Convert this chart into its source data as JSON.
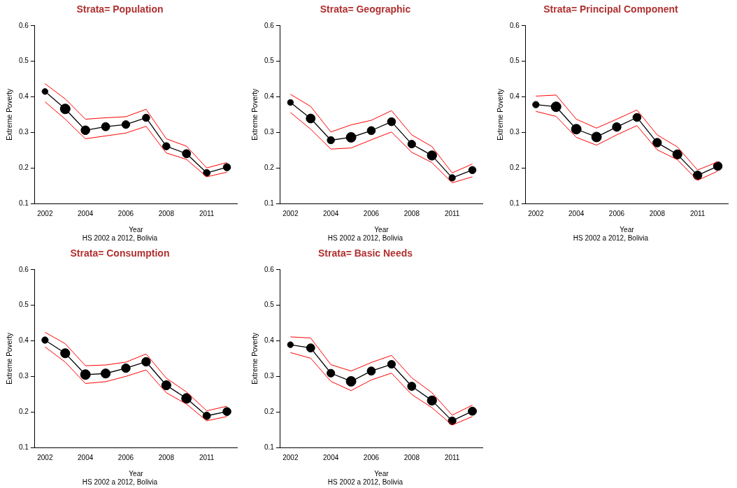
{
  "chart_data": [
    {
      "type": "line",
      "title": "Strata= Population",
      "xlabel": "Year",
      "ylabel": "Extreme Poverty",
      "annotations": [
        "HS 2002 a 2012, Bolivia"
      ],
      "categories": [
        "2002",
        null,
        "2004",
        null,
        "2006",
        null,
        "2008",
        null,
        "2011",
        null
      ],
      "ylim": [
        0.1,
        0.6
      ],
      "yticks": [
        0.1,
        0.2,
        0.3,
        0.4,
        0.5,
        0.6
      ],
      "grid": false,
      "legend": false,
      "series": [
        {
          "color": "#ff0000",
          "values": [
            0.437,
            0.394,
            0.337,
            0.341,
            0.344,
            0.365,
            0.282,
            0.261,
            0.2,
            0.215
          ]
        },
        {
          "color": "#ff0000",
          "values": [
            0.386,
            0.337,
            0.282,
            0.29,
            0.298,
            0.317,
            0.242,
            0.224,
            0.175,
            0.188
          ]
        },
        {
          "color": "#000000",
          "values": [
            0.415,
            0.366,
            0.306,
            0.316,
            0.322,
            0.341,
            0.261,
            0.24,
            0.186,
            0.202
          ]
        },
        {
          "type": "bubble",
          "color": "#000000",
          "values": [
            0.415,
            0.366,
            0.306,
            0.316,
            0.322,
            0.341,
            0.261,
            0.24,
            0.186,
            0.202
          ],
          "sizes": [
            0.36,
            1,
            0.81,
            0.72,
            0.64,
            0.56,
            0.56,
            0.72,
            0.49,
            0.56
          ]
        }
      ]
    },
    {
      "type": "line",
      "title": "Strata= Geographic",
      "xlabel": "Year",
      "ylabel": "Extreme Poverty",
      "annotations": [
        "HS 2002 a 2012, Bolivia"
      ],
      "categories": [
        "2002",
        null,
        "2004",
        null,
        "2006",
        null,
        "2008",
        null,
        "2011",
        null
      ],
      "ylim": [
        0.1,
        0.6
      ],
      "yticks": [
        0.1,
        0.2,
        0.3,
        0.4,
        0.5,
        0.6
      ],
      "grid": false,
      "legend": false,
      "series": [
        {
          "color": "#ff0000",
          "values": [
            0.407,
            0.373,
            0.301,
            0.321,
            0.334,
            0.361,
            0.293,
            0.26,
            0.186,
            0.211
          ]
        },
        {
          "color": "#ff0000",
          "values": [
            0.356,
            0.309,
            0.253,
            0.256,
            0.279,
            0.301,
            0.244,
            0.215,
            0.158,
            0.175
          ]
        },
        {
          "color": "#000000",
          "values": [
            0.384,
            0.339,
            0.278,
            0.286,
            0.305,
            0.33,
            0.267,
            0.235,
            0.172,
            0.194
          ]
        },
        {
          "type": "bubble",
          "color": "#000000",
          "values": [
            0.384,
            0.339,
            0.278,
            0.286,
            0.305,
            0.33,
            0.267,
            0.235,
            0.172,
            0.194
          ],
          "sizes": [
            0.34,
            0.84,
            0.56,
            1,
            0.69,
            0.69,
            0.63,
            0.92,
            0.44,
            0.56
          ]
        }
      ]
    },
    {
      "type": "line",
      "title": "Strata= Principal Component",
      "xlabel": "Year",
      "ylabel": "Extreme Poverty",
      "annotations": [
        "HS 2002 a 2012, Bolivia"
      ],
      "categories": [
        "2002",
        null,
        "2004",
        null,
        "2006",
        null,
        "2008",
        null,
        "2011",
        null
      ],
      "ylim": [
        0.1,
        0.6
      ],
      "yticks": [
        0.1,
        0.2,
        0.3,
        0.4,
        0.5,
        0.6
      ],
      "grid": false,
      "legend": false,
      "series": [
        {
          "color": "#ff0000",
          "values": [
            0.402,
            0.405,
            0.337,
            0.312,
            0.337,
            0.363,
            0.293,
            0.259,
            0.194,
            0.217
          ]
        },
        {
          "color": "#ff0000",
          "values": [
            0.359,
            0.345,
            0.286,
            0.264,
            0.293,
            0.319,
            0.251,
            0.223,
            0.165,
            0.191
          ]
        },
        {
          "color": "#000000",
          "values": [
            0.378,
            0.372,
            0.309,
            0.287,
            0.315,
            0.342,
            0.271,
            0.238,
            0.179,
            0.205
          ]
        },
        {
          "type": "bubble",
          "color": "#000000",
          "values": [
            0.378,
            0.372,
            0.309,
            0.287,
            0.315,
            0.342,
            0.271,
            0.238,
            0.179,
            0.205
          ],
          "sizes": [
            0.44,
            1,
            1,
            1,
            0.79,
            0.69,
            0.79,
            0.89,
            0.79,
            0.79
          ]
        }
      ]
    },
    {
      "type": "line",
      "title": "Strata= Consumption",
      "xlabel": "Year",
      "ylabel": "Extreme Poverty",
      "annotations": [
        "HS 2002 a 2012, Bolivia"
      ],
      "categories": [
        "2002",
        null,
        "2004",
        null,
        "2006",
        null,
        "2008",
        null,
        "2011",
        null
      ],
      "ylim": [
        0.1,
        0.6
      ],
      "yticks": [
        0.1,
        0.2,
        0.3,
        0.4,
        0.5,
        0.6
      ],
      "grid": false,
      "legend": false,
      "series": [
        {
          "color": "#ff0000",
          "values": [
            0.424,
            0.392,
            0.33,
            0.332,
            0.34,
            0.363,
            0.295,
            0.256,
            0.203,
            0.216
          ]
        },
        {
          "color": "#ff0000",
          "values": [
            0.383,
            0.34,
            0.28,
            0.285,
            0.3,
            0.318,
            0.254,
            0.222,
            0.175,
            0.187
          ]
        },
        {
          "color": "#000000",
          "values": [
            0.402,
            0.365,
            0.305,
            0.308,
            0.323,
            0.341,
            0.275,
            0.238,
            0.189,
            0.201
          ]
        },
        {
          "type": "bubble",
          "color": "#000000",
          "values": [
            0.402,
            0.365,
            0.305,
            0.308,
            0.323,
            0.341,
            0.275,
            0.238,
            0.189,
            0.201
          ],
          "sizes": [
            0.44,
            0.89,
            1,
            0.89,
            0.79,
            0.79,
            0.89,
            1,
            0.6,
            0.69
          ]
        }
      ]
    },
    {
      "type": "line",
      "title": "Strata= Basic Needs",
      "xlabel": "Year",
      "ylabel": "Extreme Poverty",
      "annotations": [
        "HS 2002 a 2012, Bolivia"
      ],
      "categories": [
        "2002",
        null,
        "2004",
        null,
        "2006",
        null,
        "2008",
        null,
        "2011",
        null
      ],
      "ylim": [
        0.1,
        0.6
      ],
      "yticks": [
        0.1,
        0.2,
        0.3,
        0.4,
        0.5,
        0.6
      ],
      "grid": false,
      "legend": false,
      "series": [
        {
          "color": "#ff0000",
          "values": [
            0.411,
            0.408,
            0.333,
            0.315,
            0.339,
            0.359,
            0.296,
            0.254,
            0.191,
            0.219
          ]
        },
        {
          "color": "#ff0000",
          "values": [
            0.367,
            0.351,
            0.286,
            0.26,
            0.29,
            0.309,
            0.249,
            0.212,
            0.163,
            0.187
          ]
        },
        {
          "color": "#000000",
          "values": [
            0.389,
            0.38,
            0.309,
            0.286,
            0.315,
            0.334,
            0.272,
            0.232,
            0.175,
            0.202
          ]
        },
        {
          "type": "bubble",
          "color": "#000000",
          "values": [
            0.389,
            0.38,
            0.309,
            0.286,
            0.315,
            0.334,
            0.272,
            0.232,
            0.175,
            0.202
          ],
          "sizes": [
            0.36,
            0.72,
            0.64,
            1,
            0.72,
            0.64,
            0.72,
            0.9,
            0.64,
            0.72
          ]
        }
      ]
    }
  ]
}
